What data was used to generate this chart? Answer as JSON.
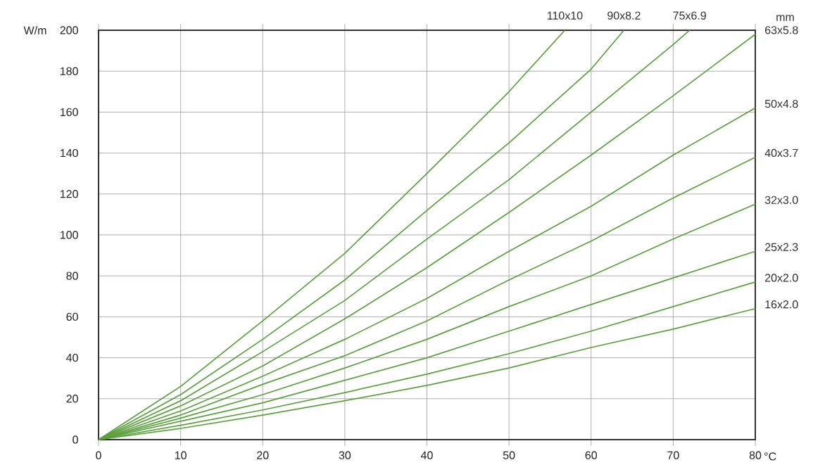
{
  "chart_data": {
    "type": "line",
    "xlabel": "°C",
    "ylabel": "W/m",
    "annotations": [
      "mm"
    ],
    "xlim": [
      0,
      80
    ],
    "ylim": [
      0,
      200
    ],
    "xticks": [
      0,
      10,
      20,
      30,
      40,
      50,
      60,
      70,
      80
    ],
    "yticks": [
      0,
      20,
      40,
      60,
      80,
      100,
      120,
      140,
      160,
      180,
      200
    ],
    "grid": true,
    "series": [
      {
        "name": "110x10",
        "color": "#5ba03e",
        "x": [
          0,
          10,
          20,
          30,
          40,
          50,
          56.8
        ],
        "values": [
          0,
          26,
          58,
          91,
          130,
          170,
          200
        ]
      },
      {
        "name": "90x8.2",
        "color": "#5ba03e",
        "x": [
          0,
          10,
          20,
          30,
          40,
          50,
          60,
          64
        ],
        "values": [
          0,
          22,
          49,
          78,
          112,
          145,
          181,
          200
        ]
      },
      {
        "name": "75x6.9",
        "color": "#5ba03e",
        "x": [
          0,
          10,
          20,
          30,
          40,
          50,
          60,
          70,
          72
        ],
        "values": [
          0,
          19,
          43,
          68,
          98,
          127,
          160,
          193,
          200
        ]
      },
      {
        "name": "63x5.8",
        "color": "#5ba03e",
        "x": [
          0,
          10,
          20,
          30,
          40,
          50,
          60,
          70,
          80
        ],
        "values": [
          0,
          16.5,
          36,
          59,
          84,
          111,
          139,
          168,
          198
        ]
      },
      {
        "name": "50x4.8",
        "color": "#5ba03e",
        "x": [
          0,
          10,
          20,
          30,
          40,
          50,
          60,
          70,
          80
        ],
        "values": [
          0,
          14,
          31,
          49,
          69,
          92,
          114,
          139,
          162
        ]
      },
      {
        "name": "40x3.7",
        "color": "#5ba03e",
        "x": [
          0,
          10,
          20,
          30,
          40,
          50,
          60,
          70,
          80
        ],
        "values": [
          0,
          12,
          27,
          41,
          58,
          78,
          97,
          118,
          138
        ]
      },
      {
        "name": "32x3.0",
        "color": "#5ba03e",
        "x": [
          0,
          10,
          20,
          30,
          40,
          50,
          60,
          70,
          80
        ],
        "values": [
          0,
          10.5,
          22,
          35,
          49,
          65,
          80,
          98,
          115
        ]
      },
      {
        "name": "25x2.3",
        "color": "#5ba03e",
        "x": [
          0,
          10,
          20,
          30,
          40,
          50,
          60,
          70,
          80
        ],
        "values": [
          0,
          9,
          18,
          29,
          40,
          53,
          66,
          79,
          92
        ]
      },
      {
        "name": "20x2.0",
        "color": "#5ba03e",
        "x": [
          0,
          10,
          20,
          30,
          40,
          50,
          60,
          70,
          80
        ],
        "values": [
          0,
          7,
          14.5,
          23,
          32,
          42,
          53,
          65,
          77
        ]
      },
      {
        "name": "16x2.0",
        "color": "#5ba03e",
        "x": [
          0,
          10,
          20,
          30,
          40,
          50,
          60,
          70,
          80
        ],
        "values": [
          0,
          5.5,
          12,
          19,
          26.5,
          35,
          45,
          54,
          64
        ]
      }
    ]
  }
}
